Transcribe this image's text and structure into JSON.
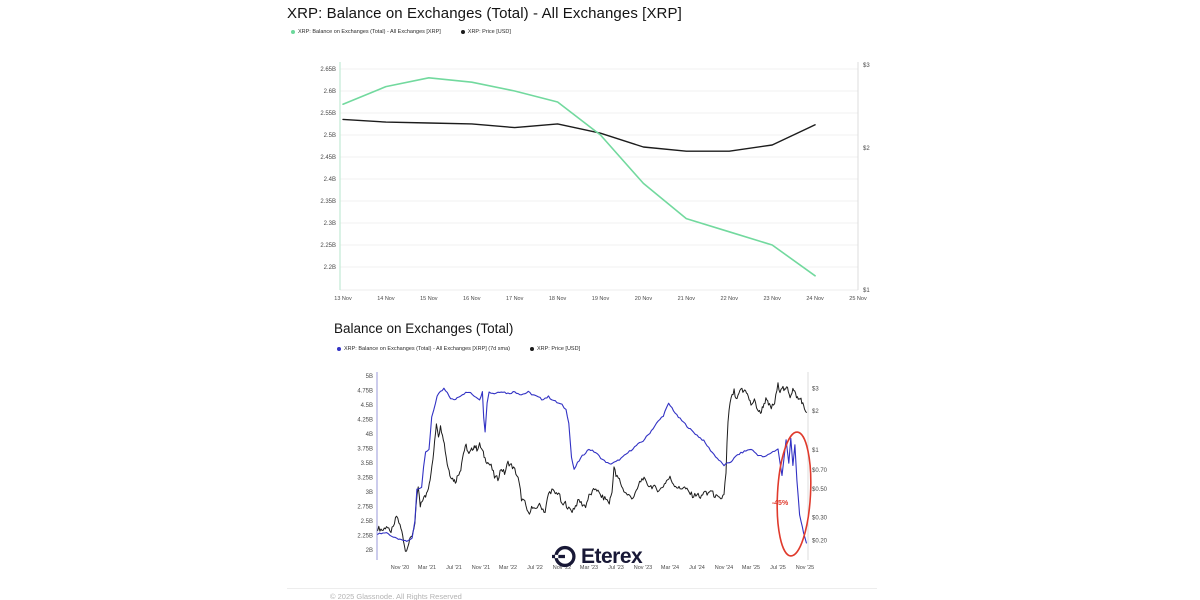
{
  "watermark": {
    "brand": "Eterex"
  },
  "footer": {
    "copyright": "© 2025 Glassnode. All Rights Reserved"
  },
  "chart_data": [
    {
      "type": "line",
      "title": "XRP: Balance on Exchanges (Total) - All Exchanges [XRP]",
      "x_unit": "day of November 2025",
      "x_tick_labels": [
        "13 Nov",
        "14 Nov",
        "15 Nov",
        "16 Nov",
        "17 Nov",
        "18 Nov",
        "19 Nov",
        "20 Nov",
        "21 Nov",
        "22 Nov",
        "23 Nov",
        "24 Nov",
        "25 Nov"
      ],
      "x_tick_values": [
        13,
        14,
        15,
        16,
        17,
        18,
        19,
        20,
        21,
        22,
        23,
        24,
        25
      ],
      "left_axis": {
        "unit": "XRP (billions)",
        "tick_labels": [
          "2.65B",
          "2.6B",
          "2.55B",
          "2.5B",
          "2.45B",
          "2.4B",
          "2.35B",
          "2.3B",
          "2.25B",
          "2.2B"
        ],
        "tick_values": [
          2.65,
          2.6,
          2.55,
          2.5,
          2.45,
          2.4,
          2.35,
          2.3,
          2.25,
          2.2
        ],
        "min": 2.2,
        "max": 2.65,
        "grid": true
      },
      "right_axis": {
        "unit": "USD",
        "scale": "log",
        "tick_labels": [
          "$3",
          "$2",
          "$1"
        ],
        "tick_values": [
          3,
          2,
          1
        ]
      },
      "legend": [
        {
          "label": "XRP: Balance on Exchanges (Total) - All Exchanges [XRP]",
          "color": "#6cd89b"
        },
        {
          "label": "XRP: Price [USD]",
          "color": "#1b1b1b"
        }
      ],
      "series": [
        {
          "name": "XRP: Price [USD]",
          "axis": "right",
          "color": "#1c1c1c",
          "x": [
            13,
            14,
            15,
            16,
            17,
            18,
            19,
            20,
            21,
            22,
            23,
            24
          ],
          "values": [
            2.3,
            2.27,
            2.26,
            2.25,
            2.21,
            2.25,
            2.15,
            2.01,
            1.97,
            1.97,
            2.03,
            2.24
          ]
        },
        {
          "name": "XRP: Balance on Exchanges (Total) - All Exchanges [XRP]",
          "axis": "left",
          "color": "#72d99e",
          "x": [
            13,
            14,
            15,
            16,
            17,
            18,
            19,
            20,
            21,
            22,
            23,
            24
          ],
          "values": [
            2.57,
            2.61,
            2.63,
            2.62,
            2.6,
            2.575,
            2.5,
            2.39,
            2.31,
            2.28,
            2.25,
            2.18
          ]
        }
      ]
    },
    {
      "type": "line",
      "title": "Balance on Exchanges (Total)",
      "x_unit": "months since Nov 2020",
      "x_tick_labels": [
        "Nov '20",
        "Mar '21",
        "Jul '21",
        "Nov '21",
        "Mar '22",
        "Jul '22",
        "Nov '22",
        "Mar '23",
        "Jul '23",
        "Nov '23",
        "Mar '24",
        "Jul '24",
        "Nov '24",
        "Mar '25",
        "Jul '25",
        "Nov '25"
      ],
      "x_tick_values": [
        0,
        4,
        8,
        12,
        16,
        20,
        24,
        28,
        32,
        36,
        40,
        44,
        48,
        52,
        56,
        60
      ],
      "left_axis": {
        "unit": "XRP (billions)",
        "tick_labels": [
          "5B",
          "4.75B",
          "4.5B",
          "4.25B",
          "4B",
          "3.75B",
          "3.5B",
          "3.25B",
          "3B",
          "2.75B",
          "2.5B",
          "2.25B",
          "2B"
        ],
        "tick_values": [
          5,
          4.75,
          4.5,
          4.25,
          4,
          3.75,
          3.5,
          3.25,
          3,
          2.75,
          2.5,
          2.25,
          2
        ],
        "min": 2,
        "max": 5,
        "grid": false
      },
      "right_axis": {
        "unit": "USD",
        "scale": "log",
        "tick_labels": [
          "$3",
          "$2",
          "$1",
          "$0.70",
          "$0.50",
          "$0.30",
          "$0.20"
        ],
        "tick_values": [
          3,
          2,
          1,
          0.7,
          0.5,
          0.3,
          0.2
        ]
      },
      "legend": [
        {
          "label": "XRP: Balance on Exchanges (Total) - All Exchanges [XRP] (7d sma)",
          "color": "#3232c4"
        },
        {
          "label": "XRP: Price [USD]",
          "color": "#1b1b1b"
        }
      ],
      "annotation": {
        "label": "-45%",
        "color": "#e03a2c"
      },
      "series": [
        {
          "name": "XRP: Price [USD]",
          "axis": "right",
          "color": "#1c1c1c",
          "x": [
            -3.3,
            -2.5,
            -2,
            -1.5,
            -1,
            -0.5,
            0,
            0.4,
            0.8,
            1.3,
            1.8,
            2.2,
            2.7,
            3,
            3.4,
            3.8,
            4.2,
            4.6,
            5,
            5.4,
            5.7,
            6,
            6.3,
            6.7,
            7,
            7.4,
            7.8,
            8.2,
            8.6,
            9,
            9.4,
            9.8,
            10.2,
            10.6,
            11,
            11.4,
            11.8,
            12.2,
            12.6,
            13,
            13.5,
            14,
            14.5,
            15,
            15.5,
            16,
            16.5,
            17,
            17.5,
            18,
            18.5,
            19,
            19.5,
            20,
            20.5,
            21,
            21.5,
            22,
            22.5,
            23,
            23.5,
            24,
            24.5,
            25,
            25.5,
            26,
            26.5,
            27,
            27.5,
            28,
            28.5,
            29,
            29.5,
            30,
            30.5,
            31,
            31.4,
            31.7,
            32,
            32.5,
            33,
            33.5,
            34,
            34.5,
            35,
            35.5,
            36,
            36.5,
            37,
            37.5,
            38,
            38.5,
            39,
            39.5,
            40,
            40.5,
            41,
            41.5,
            42,
            42.5,
            43,
            43.5,
            44,
            44.5,
            45,
            45.5,
            46,
            46.5,
            47,
            47.5,
            48,
            48.3,
            48.6,
            48.9,
            49.2,
            49.5,
            49.8,
            50.2,
            50.5,
            50.8,
            51.2,
            51.6,
            52,
            52.5,
            53,
            53.4,
            53.8,
            54.2,
            54.6,
            55,
            55.5,
            56,
            56.3,
            56.6,
            57,
            57.4,
            57.8,
            58.2,
            58.6,
            59,
            59.4,
            59.8,
            60.2
          ],
          "values": [
            0.25,
            0.24,
            0.26,
            0.23,
            0.25,
            0.31,
            0.26,
            0.22,
            0.165,
            0.19,
            0.22,
            0.27,
            0.52,
            0.36,
            0.42,
            0.44,
            0.52,
            0.65,
            0.95,
            1.62,
            1.3,
            1.5,
            1.35,
            1.0,
            0.78,
            0.65,
            0.6,
            0.57,
            0.64,
            0.72,
            0.95,
            1.08,
            0.92,
            1.0,
            1.08,
            1.02,
            1.1,
            0.98,
            0.86,
            0.8,
            0.75,
            0.62,
            0.6,
            0.72,
            0.66,
            0.8,
            0.76,
            0.7,
            0.6,
            0.42,
            0.39,
            0.32,
            0.36,
            0.34,
            0.38,
            0.36,
            0.33,
            0.46,
            0.49,
            0.46,
            0.47,
            0.37,
            0.39,
            0.35,
            0.34,
            0.37,
            0.41,
            0.38,
            0.37,
            0.44,
            0.47,
            0.51,
            0.46,
            0.43,
            0.42,
            0.39,
            0.47,
            0.74,
            0.63,
            0.59,
            0.5,
            0.46,
            0.44,
            0.43,
            0.47,
            0.56,
            0.61,
            0.55,
            0.53,
            0.52,
            0.5,
            0.49,
            0.53,
            0.58,
            0.61,
            0.55,
            0.52,
            0.5,
            0.52,
            0.49,
            0.46,
            0.44,
            0.46,
            0.42,
            0.48,
            0.45,
            0.49,
            0.45,
            0.43,
            0.41,
            0.46,
            0.65,
            1.6,
            2.35,
            2.6,
            2.85,
            2.4,
            2.65,
            3.02,
            2.8,
            2.95,
            2.55,
            2.25,
            2.4,
            2.05,
            1.92,
            2.2,
            2.45,
            2.25,
            2.12,
            2.3,
            3.18,
            2.9,
            3.1,
            2.85,
            3.05,
            2.6,
            2.95,
            2.7,
            2.45,
            2.5,
            2.15,
            1.95
          ]
        },
        {
          "name": "XRP: Balance on Exchanges (Total) - All Exchanges [XRP] (7d sma)",
          "axis": "left",
          "color": "#3232c4",
          "x": [
            -3.3,
            -2,
            -1,
            0,
            1,
            1.8,
            2.2,
            2.5,
            3.2,
            3.5,
            3.8,
            4.3,
            4.7,
            5,
            5.5,
            6,
            6.5,
            7,
            7.5,
            8,
            8.7,
            9.5,
            10.2,
            11,
            11.8,
            12.2,
            12.4,
            12.6,
            12.9,
            13.2,
            14,
            15,
            16,
            17,
            18,
            19,
            20,
            21,
            22,
            23,
            24,
            24.6,
            25,
            25.4,
            25.8,
            26.3,
            27,
            28,
            29,
            30,
            31,
            32,
            33,
            34,
            35,
            36,
            37,
            38,
            39,
            39.8,
            40.3,
            41,
            42,
            43,
            44,
            45,
            46,
            47,
            48,
            49,
            50,
            51,
            52,
            53,
            54,
            55,
            56,
            56.6,
            57.2,
            57.6,
            57.9,
            58.2,
            58.5,
            58.8,
            59.2,
            59.6,
            60,
            60.2
          ],
          "values": [
            2.28,
            2.3,
            2.22,
            2.18,
            2.15,
            2.2,
            2.5,
            3.05,
            3.08,
            3.45,
            3.7,
            3.72,
            4.3,
            4.42,
            4.65,
            4.72,
            4.78,
            4.7,
            4.62,
            4.58,
            4.65,
            4.7,
            4.72,
            4.66,
            4.6,
            4.72,
            4.3,
            4.05,
            4.55,
            4.72,
            4.7,
            4.74,
            4.7,
            4.73,
            4.68,
            4.72,
            4.66,
            4.6,
            4.64,
            4.56,
            4.5,
            4.42,
            4.2,
            3.6,
            3.38,
            3.5,
            3.62,
            3.74,
            3.68,
            3.56,
            3.48,
            3.52,
            3.6,
            3.7,
            3.8,
            3.88,
            4.02,
            4.18,
            4.32,
            4.52,
            4.45,
            4.32,
            4.2,
            4.08,
            3.98,
            3.88,
            3.72,
            3.58,
            3.46,
            3.52,
            3.64,
            3.7,
            3.74,
            3.64,
            3.6,
            3.68,
            3.74,
            3.28,
            3.9,
            3.5,
            3.93,
            3.45,
            3.8,
            3.2,
            2.6,
            2.4,
            2.2,
            2.12
          ]
        }
      ]
    }
  ]
}
